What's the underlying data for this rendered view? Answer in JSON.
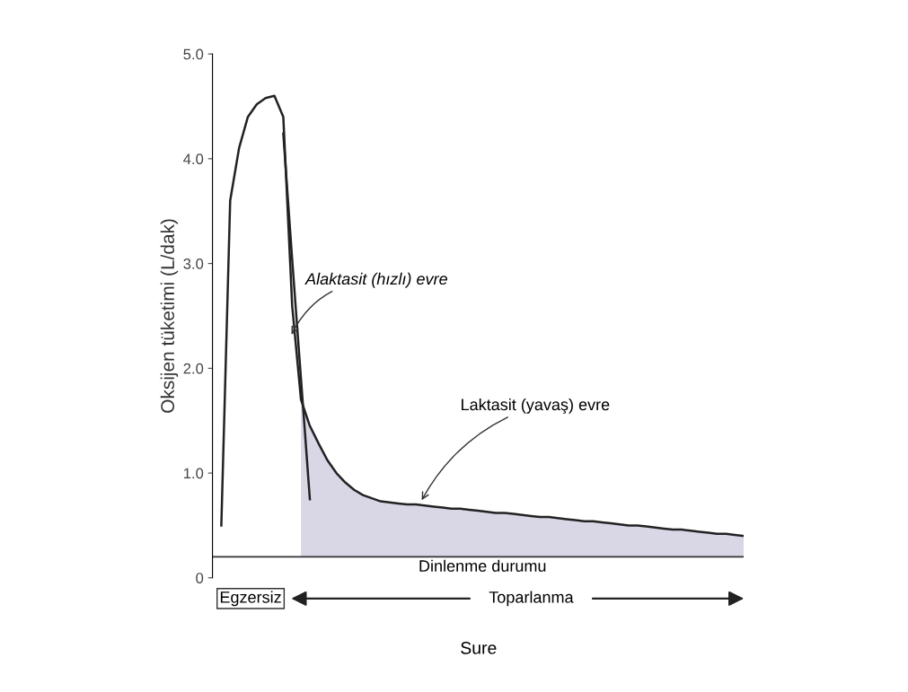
{
  "chart_data": {
    "type": "line",
    "ylabel": "Oksijen tüketimi (L/dak)",
    "xlabel": "Sure",
    "categories": [
      null,
      null,
      null,
      null,
      null,
      null,
      null,
      null,
      null,
      null,
      null,
      null,
      null,
      null,
      null,
      null,
      null,
      null,
      null,
      null,
      null,
      null,
      null,
      null,
      null,
      null,
      null,
      null,
      null,
      null,
      null,
      null,
      null,
      null,
      null,
      null,
      null,
      null,
      null,
      null,
      null,
      null,
      null,
      null,
      null,
      null,
      null,
      null,
      null,
      null,
      null,
      null,
      null,
      null,
      null,
      null,
      null,
      null,
      null,
      null,
      null
    ],
    "series": [
      {
        "type": "area",
        "color": "#d9d6e6",
        "values": [
          null,
          null,
          null,
          null,
          null,
          null,
          null,
          null,
          null,
          null,
          1.7,
          1.45,
          1.28,
          1.12,
          1.0,
          0.91,
          0.84,
          0.79,
          0.76,
          0.73,
          0.72,
          0.71,
          0.7,
          0.7,
          0.69,
          0.68,
          0.67,
          0.66,
          0.66,
          0.65,
          0.64,
          0.63,
          0.62,
          0.62,
          0.61,
          0.6,
          0.59,
          0.58,
          0.58,
          0.57,
          0.56,
          0.55,
          0.54,
          0.54,
          0.53,
          0.52,
          0.51,
          0.5,
          0.5,
          0.49,
          0.48,
          0.47,
          0.46,
          0.46,
          0.45,
          0.44,
          0.43,
          0.42,
          0.42,
          0.41,
          0.4
        ]
      },
      {
        "color": "#222222",
        "values": [
          null,
          0.5,
          3.6,
          4.1,
          4.4,
          4.52,
          4.58,
          4.6,
          4.4,
          2.6,
          1.7,
          1.45,
          1.28,
          1.12,
          1.0,
          0.91,
          0.84,
          0.79,
          0.76,
          0.73,
          0.72,
          0.71,
          0.7,
          0.7,
          0.69,
          0.68,
          0.67,
          0.66,
          0.66,
          0.65,
          0.64,
          0.63,
          0.62,
          0.62,
          0.61,
          0.6,
          0.59,
          0.58,
          0.58,
          0.57,
          0.56,
          0.55,
          0.54,
          0.54,
          0.53,
          0.52,
          0.51,
          0.5,
          0.5,
          0.49,
          0.48,
          0.47,
          0.46,
          0.46,
          0.45,
          0.44,
          0.43,
          0.42,
          0.42,
          0.41,
          0.4
        ]
      },
      {
        "type": "line",
        "color": "#222222",
        "values": [
          null,
          null,
          null,
          null,
          null,
          null,
          null,
          null,
          4.24,
          3.04,
          1.9,
          0.75,
          null,
          null,
          null,
          null,
          null,
          null,
          null,
          null,
          null,
          null,
          null,
          null,
          null,
          null,
          null,
          null,
          null,
          null,
          null,
          null,
          null,
          null,
          null,
          null,
          null,
          null,
          null,
          null,
          null,
          null,
          null,
          null,
          null,
          null,
          null,
          null,
          null,
          null,
          null,
          null,
          null,
          null,
          null,
          null,
          null,
          null,
          null,
          null,
          null
        ]
      }
    ],
    "ylim": [
      0,
      5.0
    ],
    "yticks": [
      0,
      {
        "value": 1.0,
        "label": "1.0"
      },
      {
        "value": 2.0,
        "label": "2.0"
      },
      {
        "value": 3.0,
        "label": "3.0"
      },
      {
        "value": 4.0,
        "label": "4.0"
      },
      {
        "value": 5.0,
        "label": "5.0"
      }
    ],
    "ref_lines": [
      {
        "axis": "y",
        "value": 0.2,
        "label": "Dinlenme durumu",
        "color": "#333333"
      }
    ],
    "annotations": [
      "Alaktasit (hızlı) evre",
      "Laktasit (yavaş) evre",
      "Egzersiz",
      "Toparlanma"
    ],
    "grid": false
  }
}
